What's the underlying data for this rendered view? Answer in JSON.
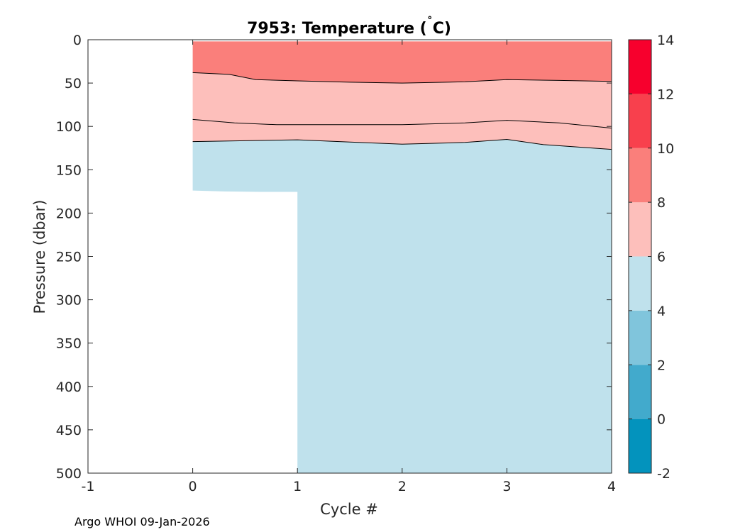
{
  "chart_data": {
    "type": "contour",
    "title_main": "7953:  Temperature (",
    "title_degree": "˚",
    "title_unit": "C)",
    "xlabel": "Cycle #",
    "ylabel": "Pressure (dbar)",
    "xlim": [
      -1,
      4
    ],
    "ylim": [
      0,
      500
    ],
    "y_reversed": true,
    "x_ticks": [
      -1,
      0,
      1,
      2,
      3,
      4
    ],
    "x_tick_labels": [
      "-1",
      "0",
      "1",
      "2",
      "3",
      "4"
    ],
    "y_ticks": [
      0,
      50,
      100,
      150,
      200,
      250,
      300,
      350,
      400,
      450,
      500
    ],
    "y_tick_labels": [
      "0",
      "50",
      "100",
      "150",
      "200",
      "250",
      "300",
      "350",
      "400",
      "450",
      "500"
    ],
    "colorbar": {
      "limits": [
        -2,
        14
      ],
      "tick_values": [
        -2,
        0,
        2,
        4,
        6,
        8,
        10,
        12,
        14
      ],
      "tick_labels": [
        "-2",
        "0",
        "2",
        "4",
        "6",
        "8",
        "10",
        "12",
        "14"
      ],
      "bands": [
        {
          "from": -2,
          "to": 0,
          "color": "#0393bd"
        },
        {
          "from": 0,
          "to": 2,
          "color": "#42aacc"
        },
        {
          "from": 2,
          "to": 4,
          "color": "#80c5dc"
        },
        {
          "from": 4,
          "to": 6,
          "color": "#bfe1ec"
        },
        {
          "from": 6,
          "to": 8,
          "color": "#fdbfbb"
        },
        {
          "from": 8,
          "to": 10,
          "color": "#fa7f7b"
        },
        {
          "from": 10,
          "to": 12,
          "color": "#f8404d"
        },
        {
          "from": 12,
          "to": 14,
          "color": "#f7002d"
        }
      ]
    },
    "profiles": [
      {
        "cycle": 0,
        "top_pressure": 2,
        "max_pressure": 174
      },
      {
        "cycle": 1,
        "top_pressure": 2,
        "max_pressure": 500
      },
      {
        "cycle": 2,
        "top_pressure": 2,
        "max_pressure": 500
      },
      {
        "cycle": 3,
        "top_pressure": 2,
        "max_pressure": 500
      },
      {
        "cycle": 4,
        "top_pressure": 2,
        "max_pressure": 500
      }
    ],
    "data_bottom_boundary": [
      [
        0,
        174
      ],
      [
        0.3,
        175
      ],
      [
        0.65,
        175.5
      ],
      [
        1,
        175.5
      ],
      [
        1,
        500
      ],
      [
        4,
        500
      ]
    ],
    "isotherms": [
      {
        "level": 8,
        "points": [
          [
            0,
            38
          ],
          [
            0.35,
            40
          ],
          [
            0.6,
            46
          ],
          [
            1.0,
            47.5
          ],
          [
            1.5,
            49
          ],
          [
            2.0,
            50
          ],
          [
            2.6,
            48.5
          ],
          [
            3.0,
            46
          ],
          [
            3.5,
            47
          ],
          [
            4.0,
            48
          ]
        ]
      },
      {
        "level": 7,
        "points": [
          [
            0,
            92
          ],
          [
            0.4,
            96
          ],
          [
            0.8,
            98
          ],
          [
            1.2,
            98
          ],
          [
            2.0,
            98
          ],
          [
            2.6,
            96
          ],
          [
            3.0,
            93
          ],
          [
            3.5,
            96
          ],
          [
            4.0,
            102
          ]
        ]
      },
      {
        "level": 6,
        "points": [
          [
            0,
            117.5
          ],
          [
            0.5,
            116.5
          ],
          [
            1.0,
            115.5
          ],
          [
            1.5,
            118
          ],
          [
            2.0,
            120.5
          ],
          [
            2.6,
            118.5
          ],
          [
            3.0,
            115
          ],
          [
            3.35,
            121
          ],
          [
            4.0,
            126.5
          ]
        ]
      }
    ],
    "color_regions": [
      {
        "name": "8-10",
        "color": "#fa7f7b",
        "upper": "top",
        "lower": "isotherm-8"
      },
      {
        "name": "6-8",
        "color": "#fdbfbb",
        "upper": "isotherm-8",
        "lower": "isotherm-6"
      },
      {
        "name": "4-6",
        "color": "#bfe1ec",
        "upper": "isotherm-6",
        "lower": "data-bottom"
      }
    ]
  },
  "footer": {
    "credit": "Argo WHOI 09-Jan-2026"
  }
}
